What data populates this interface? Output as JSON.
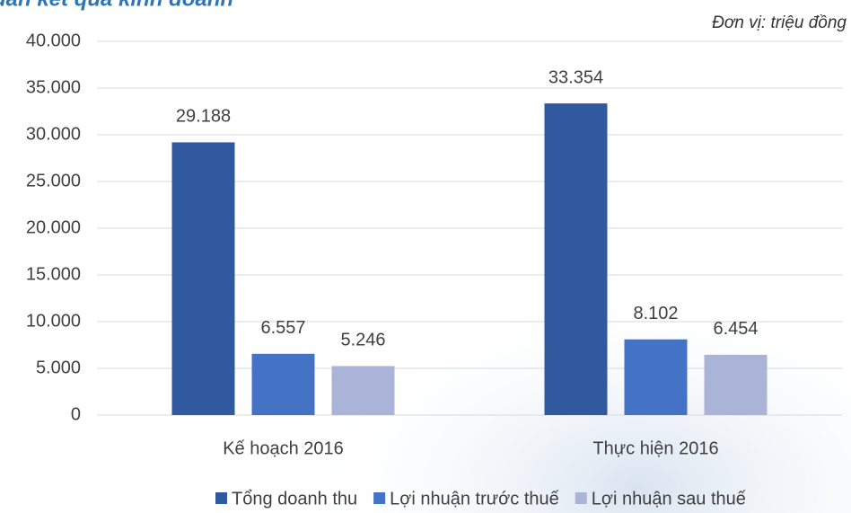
{
  "chart_data": {
    "type": "bar",
    "title": "uản kết quả kinh doanh",
    "unit_note": "Đơn vị: triệu đồng",
    "categories": [
      "Kế hoạch 2016",
      "Thực hiện 2016"
    ],
    "series": [
      {
        "name": "Tổng doanh thu",
        "color": "#30599f",
        "values": [
          29188,
          33354
        ],
        "value_labels": [
          "29.188",
          "33.354"
        ]
      },
      {
        "name": "Lợi nhuận trước thuế",
        "color": "#4472c4",
        "values": [
          6557,
          8102
        ],
        "value_labels": [
          "6.557",
          "8.102"
        ]
      },
      {
        "name": "Lợi nhuận sau thuế",
        "color": "#a9b4d8",
        "values": [
          5246,
          6454
        ],
        "value_labels": [
          "5.246",
          "6.454"
        ]
      }
    ],
    "ylim": [
      0,
      40000
    ],
    "yticks": [
      0,
      {
        "value": 5000,
        "label": "5.000"
      },
      {
        "value": 10000,
        "label": "10.000"
      },
      {
        "value": 15000,
        "label": "15.000"
      },
      {
        "value": 20000,
        "label": "20.000"
      },
      {
        "value": 25000,
        "label": "25.000"
      },
      {
        "value": 30000,
        "label": "30.000"
      },
      {
        "value": 35000,
        "label": "35.000"
      },
      {
        "value": 40000,
        "label": "40.000"
      }
    ],
    "grid": true
  }
}
